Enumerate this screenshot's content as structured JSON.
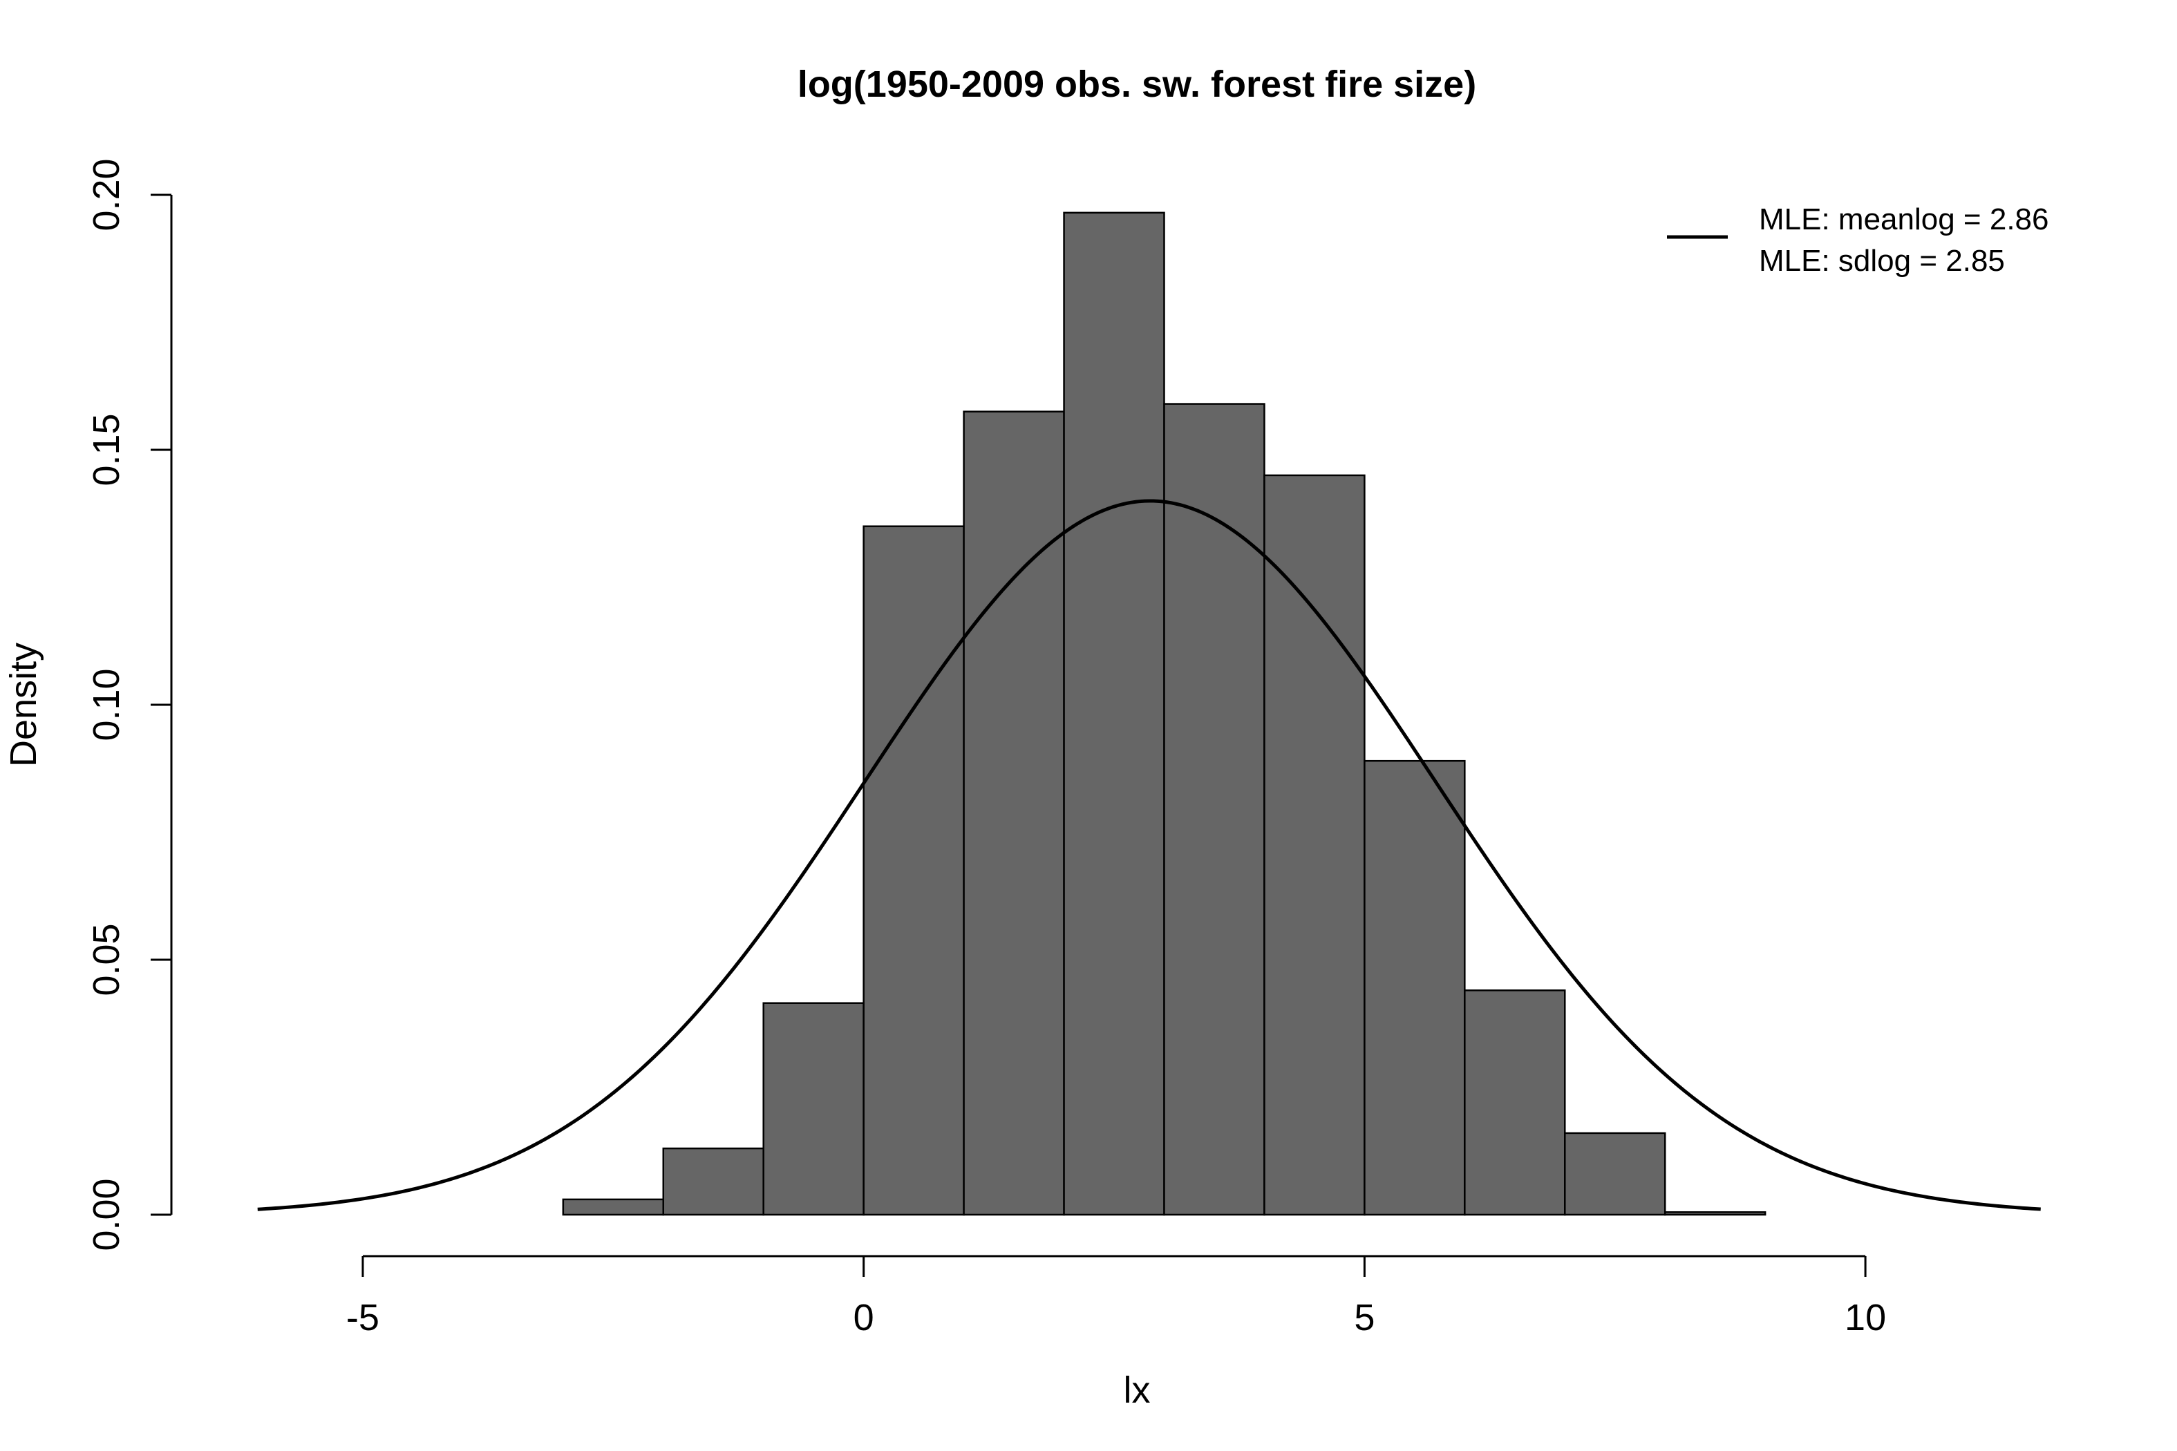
{
  "chart_data": {
    "type": "bar",
    "title": "log(1950-2009 obs. sw. forest fire size)",
    "xlabel": "lx",
    "ylabel": "Density",
    "xlim": [
      -6.2,
      11.8
    ],
    "ylim": [
      0,
      0.2
    ],
    "x_ticks": [
      -5,
      0,
      5,
      10
    ],
    "x_tick_labels": [
      "-5",
      "0",
      "5",
      "10"
    ],
    "y_ticks": [
      0,
      0.05,
      0.1,
      0.15,
      0.2
    ],
    "y_tick_labels": [
      "0.00",
      "0.05",
      "0.10",
      "0.15",
      "0.20"
    ],
    "bar_color": "#666666",
    "grid": false,
    "histogram": {
      "bin_edges": [
        -3,
        -2,
        -1,
        0,
        1,
        2,
        3,
        4,
        5,
        6,
        7,
        8,
        9
      ],
      "density": [
        0.003,
        0.013,
        0.0415,
        0.135,
        0.1575,
        0.1965,
        0.159,
        0.145,
        0.089,
        0.044,
        0.016,
        0.0005
      ]
    },
    "curve": {
      "type": "normal-density",
      "mean": 2.86,
      "sd": 2.85,
      "x_range": [
        -6.05,
        11.75
      ]
    },
    "legend": {
      "position": "top-right",
      "entries": [
        "MLE: meanlog = 2.86",
        "MLE: sdlog = 2.85"
      ]
    }
  }
}
